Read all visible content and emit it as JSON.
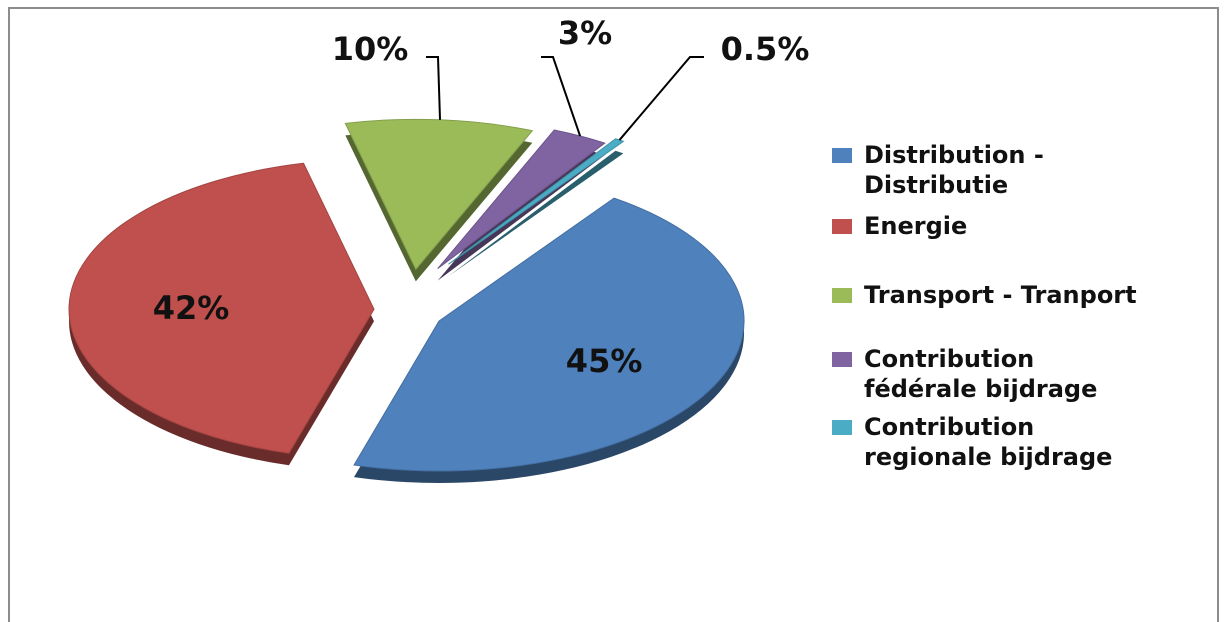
{
  "chart_data": {
    "type": "pie",
    "title": "",
    "categories": [
      "Distribution - Distributie",
      "Energie",
      "Transport - Tranport",
      "Contribution fédérale bijdrage",
      "Contribution regionale bijdrage"
    ],
    "values": [
      45,
      42,
      10,
      3,
      0.5
    ],
    "data_labels": [
      "45%",
      "42%",
      "10%",
      "3%",
      "0.5%"
    ],
    "colors": [
      "#4F81BD",
      "#C0504D",
      "#9BBB59",
      "#8064A2",
      "#4BACC6"
    ],
    "legend_position": "right",
    "style": "3d exploded pie"
  },
  "legend": {
    "items": [
      {
        "label_lines": [
          "Distribution -",
          "Distributie"
        ]
      },
      {
        "label_lines": [
          "Energie"
        ]
      },
      {
        "label_lines": [
          "Transport - Tranport"
        ]
      },
      {
        "label_lines": [
          "Contribution",
          "fédérale bijdrage"
        ]
      },
      {
        "label_lines": [
          "Contribution",
          "regionale bijdrage"
        ]
      }
    ]
  }
}
